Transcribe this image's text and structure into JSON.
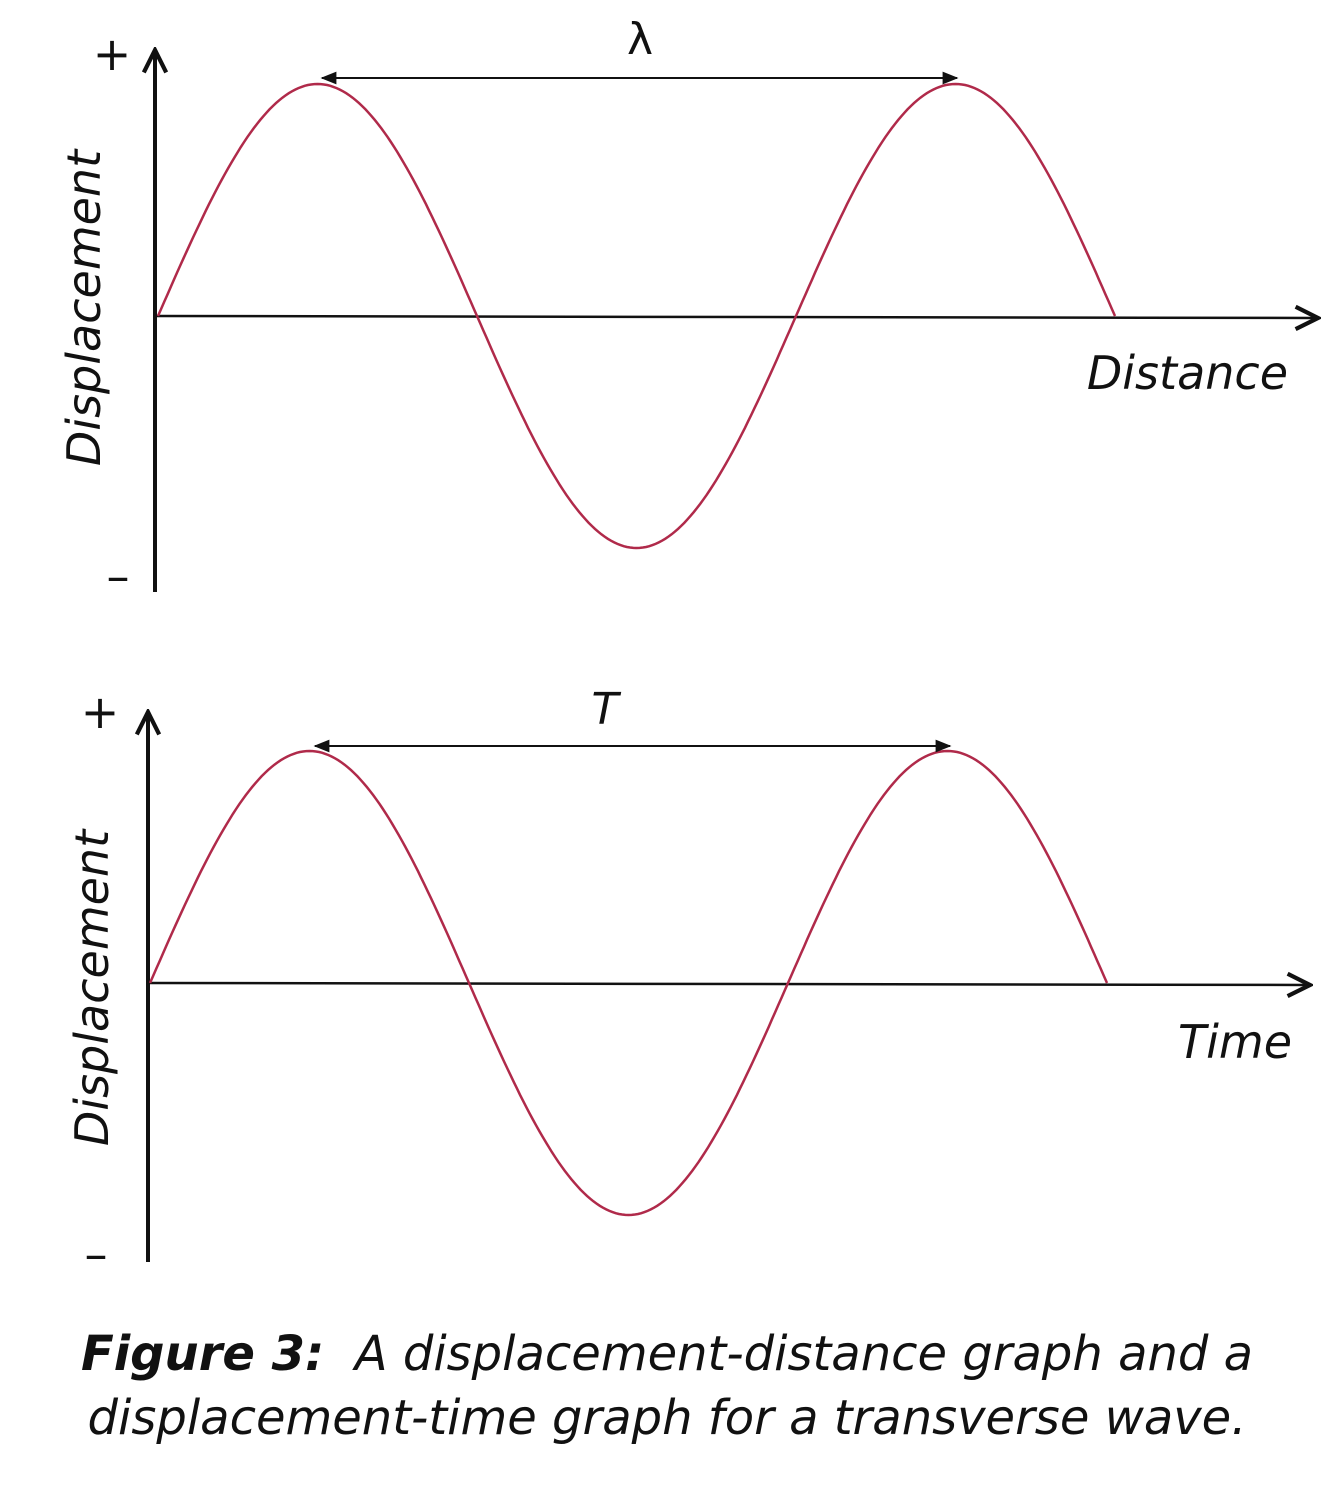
{
  "graphs": [
    {
      "y_label": "Displacement",
      "x_label": "Distance",
      "plus_sign": "+",
      "minus_sign": "–",
      "span_label": "λ",
      "curve_color": "#b02a4a"
    },
    {
      "y_label": "Displacement",
      "x_label": "Time",
      "plus_sign": "+",
      "minus_sign": "–",
      "span_label": "T",
      "curve_color": "#b02a4a"
    }
  ],
  "caption": {
    "prefix": "Figure 3:",
    "text": "A displacement-distance graph and a displacement-time graph for a transverse wave."
  }
}
